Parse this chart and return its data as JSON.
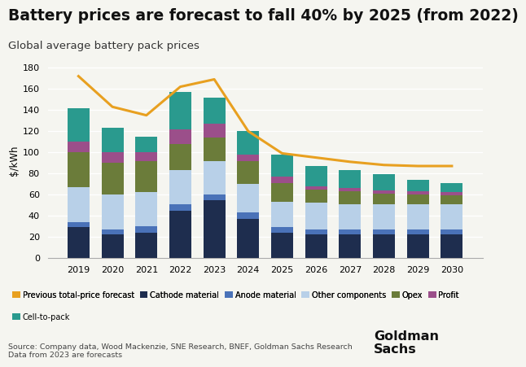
{
  "title": "Battery prices are forecast to fall 40% by 2025 (from 2022)",
  "subtitle": "Global average battery pack prices",
  "ylabel": "$/kWh",
  "source": "Source: Company data, Wood Mackenzie, SNE Research, BNEF, Goldman Sachs Research\nData from 2023 are forecasts",
  "years": [
    2019,
    2020,
    2021,
    2022,
    2023,
    2024,
    2025,
    2026,
    2027,
    2028,
    2029,
    2030
  ],
  "cathode": [
    29,
    22,
    24,
    45,
    55,
    37,
    24,
    22,
    22,
    22,
    22,
    22
  ],
  "anode": [
    5,
    5,
    6,
    6,
    5,
    6,
    5,
    5,
    5,
    5,
    5,
    5
  ],
  "other_components": [
    33,
    33,
    32,
    32,
    32,
    27,
    24,
    25,
    24,
    24,
    24,
    24
  ],
  "opex": [
    33,
    30,
    30,
    25,
    22,
    22,
    18,
    13,
    12,
    10,
    9,
    8
  ],
  "profit": [
    10,
    10,
    8,
    14,
    13,
    6,
    6,
    3,
    3,
    3,
    3,
    3
  ],
  "cell_to_pack": [
    32,
    23,
    15,
    35,
    25,
    22,
    21,
    19,
    17,
    15,
    11,
    9
  ],
  "forecast_line": [
    172,
    143,
    135,
    162,
    169,
    120,
    99,
    95,
    91,
    88,
    87,
    87
  ],
  "colors": {
    "cathode": "#1e2d4e",
    "anode": "#4a72b8",
    "other_components": "#b8d0e8",
    "opex": "#6b7c3a",
    "profit": "#9b4f8a",
    "cell_to_pack": "#2a9a8e",
    "forecast_line": "#e8a020"
  },
  "ylim": [
    0,
    185
  ],
  "yticks": [
    0,
    20,
    40,
    60,
    80,
    100,
    120,
    140,
    160,
    180
  ],
  "background_color": "#f5f5f0",
  "title_fontsize": 13.5,
  "subtitle_fontsize": 9.5,
  "goldman_sachs_text": "Goldman\nSachs"
}
